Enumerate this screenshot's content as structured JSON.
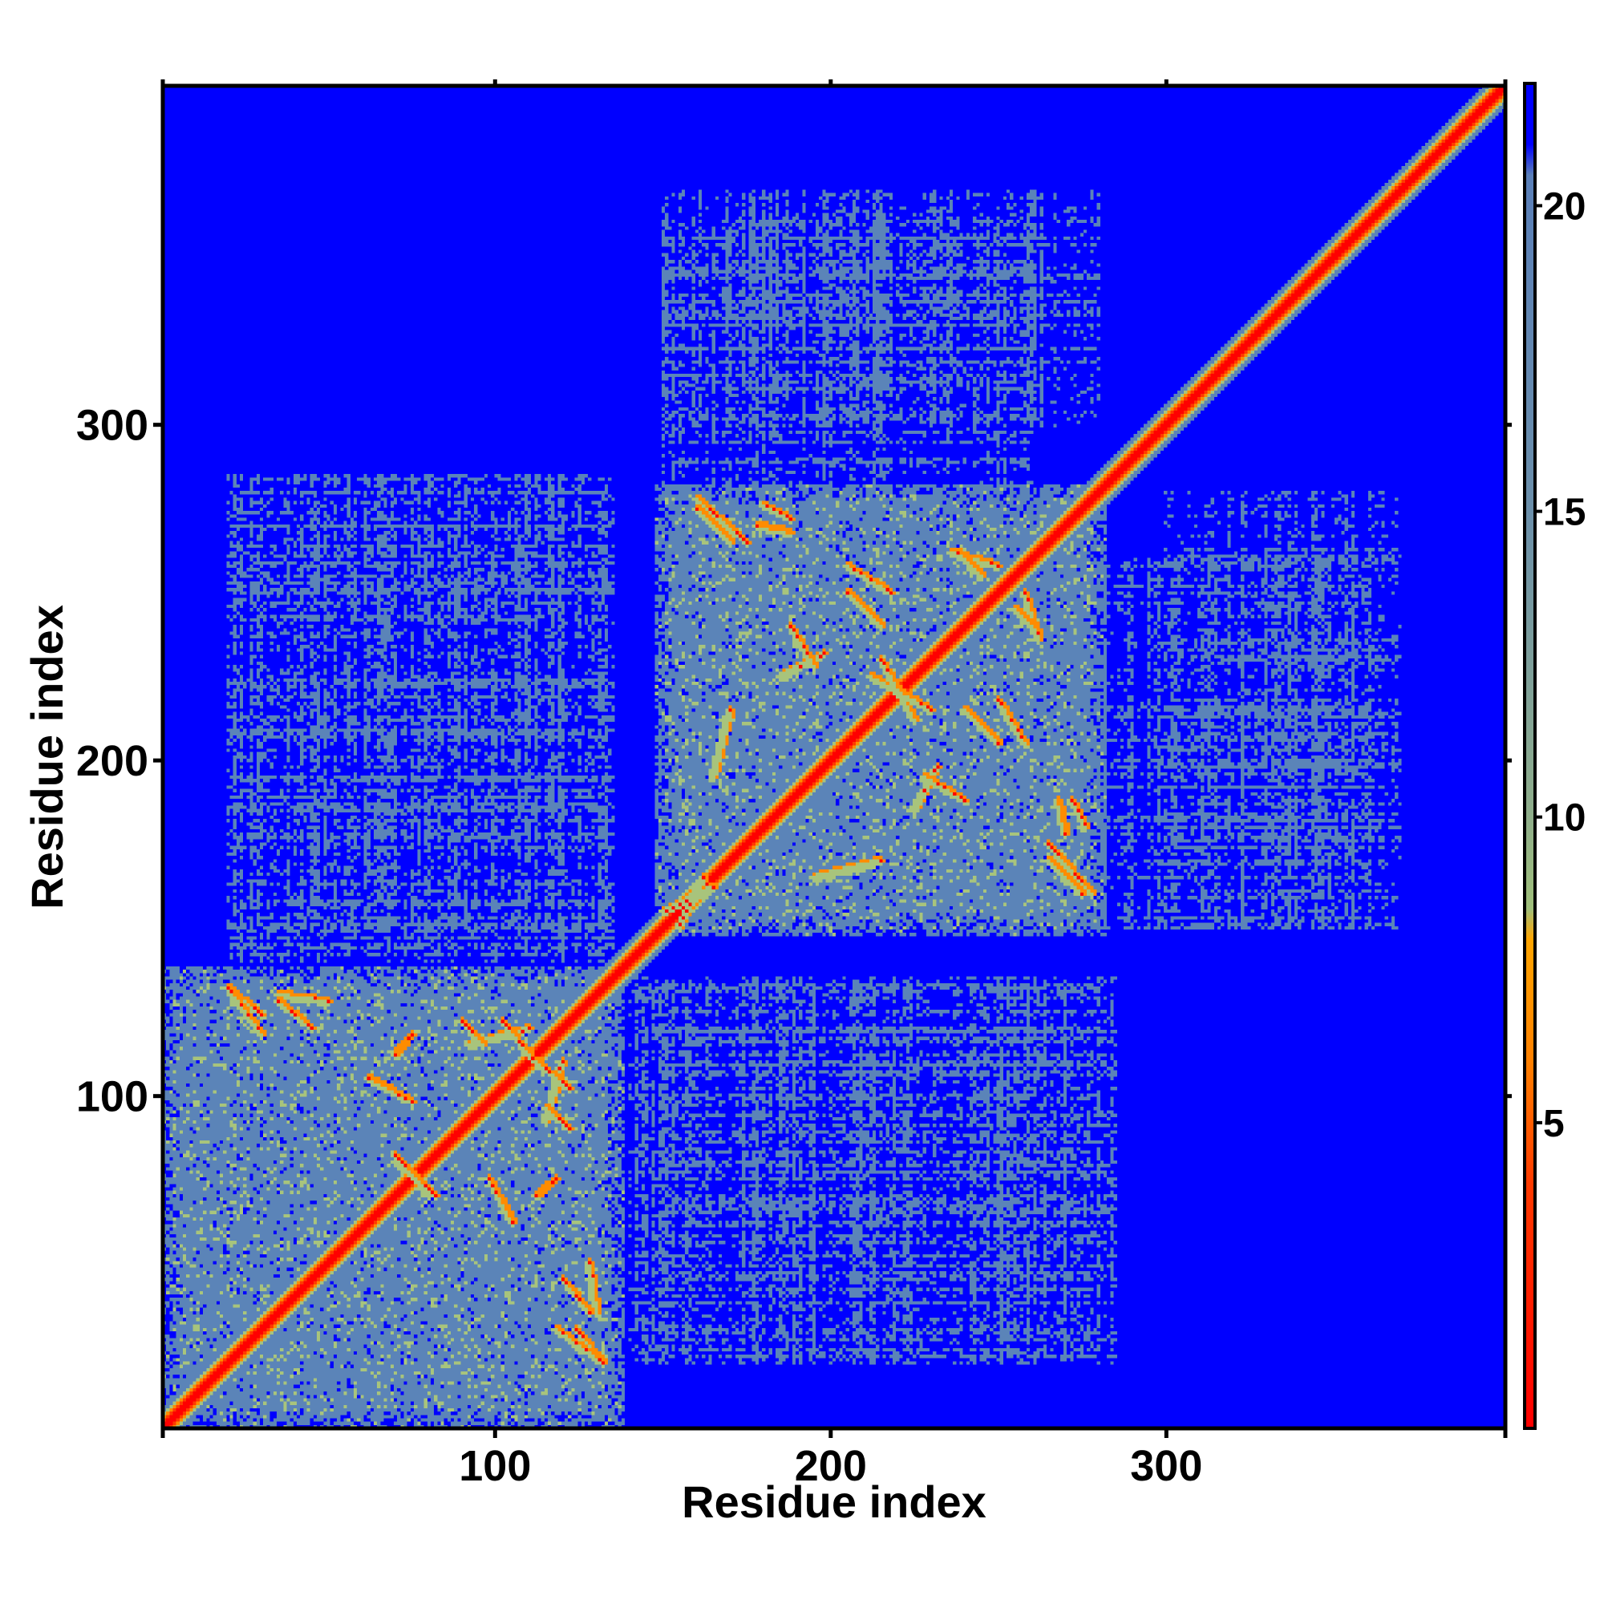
{
  "chart_data": {
    "type": "heatmap",
    "title": "",
    "xlabel": "Residue index",
    "ylabel": "Residue index",
    "xlim": [
      1,
      401
    ],
    "ylim": [
      1,
      401
    ],
    "x_ticks": [
      100,
      200,
      300
    ],
    "y_ticks": [
      100,
      200,
      300
    ],
    "colorbar": {
      "ticks": [
        5,
        10,
        15,
        20
      ],
      "range": [
        0,
        22
      ],
      "stops": [
        {
          "value": 0,
          "color": "#ff0000"
        },
        {
          "value": 4,
          "color": "#ff3a00"
        },
        {
          "value": 6,
          "color": "#ff8000"
        },
        {
          "value": 8,
          "color": "#ffa500"
        },
        {
          "value": 8.5,
          "color": "#9fbf7a"
        },
        {
          "value": 10,
          "color": "#8fae8a"
        },
        {
          "value": 15,
          "color": "#6b8faa"
        },
        {
          "value": 20.5,
          "color": "#5a7fb8"
        },
        {
          "value": 21,
          "color": "#0000ff"
        },
        {
          "value": 22,
          "color": "#0000ff"
        }
      ]
    },
    "background_color": "#0000ff",
    "contact_color": "#5b84b8",
    "near_color": "#a8c47c",
    "close_color": "#ff8c00",
    "diagonal_color": "#ff0000",
    "domains": [
      {
        "start": 1,
        "end": 138
      },
      {
        "start": 148,
        "end": 282
      },
      {
        "start": 282,
        "end": 401
      }
    ],
    "inter_domain_blocks": [
      {
        "x_range": [
          20,
          135
        ],
        "y_range": [
          150,
          285
        ]
      },
      {
        "x_range": [
          140,
          280
        ],
        "y_range": [
          20,
          135
        ]
      },
      {
        "x_range": [
          280,
          360
        ],
        "y_range": [
          150,
          260
        ]
      },
      {
        "x_range": [
          150,
          280
        ],
        "y_range": [
          300,
          370
        ]
      }
    ],
    "off_diagonal_contacts": [
      {
        "from": [
          20,
          132
        ],
        "to": [
          30,
          124
        ]
      },
      {
        "from": [
          35,
          130
        ],
        "to": [
          50,
          128
        ]
      },
      {
        "from": [
          75,
          118
        ],
        "to": [
          70,
          112
        ]
      },
      {
        "from": [
          92,
          115
        ],
        "to": [
          110,
          120
        ]
      },
      {
        "from": [
          112,
          110
        ],
        "to": [
          122,
          102
        ]
      },
      {
        "from": [
          115,
          96
        ],
        "to": [
          122,
          90
        ]
      },
      {
        "from": [
          70,
          80
        ],
        "to": [
          82,
          70
        ]
      },
      {
        "from": [
          98,
          75
        ],
        "to": [
          105,
          62
        ]
      },
      {
        "from": [
          120,
          45
        ],
        "to": [
          128,
          35
        ]
      },
      {
        "from": [
          118,
          30
        ],
        "to": [
          132,
          20
        ]
      },
      {
        "from": [
          150,
          155
        ],
        "to": [
          165,
          162
        ]
      },
      {
        "from": [
          160,
          278
        ],
        "to": [
          175,
          265
        ]
      },
      {
        "from": [
          180,
          276
        ],
        "to": [
          188,
          272
        ]
      },
      {
        "from": [
          205,
          258
        ],
        "to": [
          218,
          250
        ]
      },
      {
        "from": [
          236,
          262
        ],
        "to": [
          250,
          258
        ]
      },
      {
        "from": [
          255,
          245
        ],
        "to": [
          262,
          238
        ]
      },
      {
        "from": [
          185,
          225
        ],
        "to": [
          198,
          232
        ]
      },
      {
        "from": [
          212,
          225
        ],
        "to": [
          230,
          215
        ]
      },
      {
        "from": [
          240,
          215
        ],
        "to": [
          250,
          205
        ]
      },
      {
        "from": [
          228,
          195
        ],
        "to": [
          240,
          188
        ]
      },
      {
        "from": [
          265,
          170
        ],
        "to": [
          275,
          160
        ]
      },
      {
        "from": [
          268,
          188
        ],
        "to": [
          270,
          178
        ]
      },
      {
        "from": [
          195,
          165
        ],
        "to": [
          215,
          170
        ]
      }
    ]
  }
}
